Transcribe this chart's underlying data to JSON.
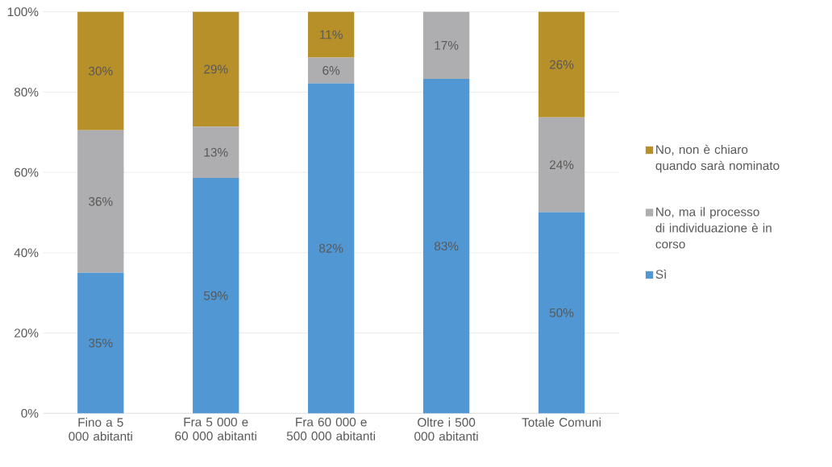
{
  "chart_data": {
    "type": "bar",
    "stacked": true,
    "categories": [
      "Fino a 5 000 abitanti",
      "Fra 5 000 e 60 000 abitanti",
      "Fra 60 000 e 500 000 abitanti",
      "Oltre i 500 000 abitanti",
      "Totale Comuni"
    ],
    "series": [
      {
        "name": "Sì",
        "color": "#5097d3",
        "values": [
          35,
          58.6,
          82.2,
          83.3,
          50.1
        ],
        "value_labels": [
          "35%",
          "59%",
          "82%",
          "83%",
          "50%"
        ]
      },
      {
        "name": "No, ma il processo di individuazione è in corso",
        "color": "#aeaeb0",
        "values": [
          35.5,
          12.8,
          6.4,
          16.7,
          23.6
        ],
        "value_labels": [
          "36%",
          "13%",
          "6%",
          "17%",
          "24%"
        ]
      },
      {
        "name": "No, non è chiaro quando sarà nominato",
        "color": "#b8902a",
        "values": [
          29.5,
          28.6,
          11.4,
          0,
          26.3
        ],
        "value_labels": [
          "30%",
          "29%",
          "11%",
          null,
          "26%"
        ]
      }
    ],
    "ylim": [
      0,
      100
    ],
    "yticks": [
      {
        "value": 0,
        "label": "0%"
      },
      {
        "value": 20,
        "label": "20%"
      },
      {
        "value": 40,
        "label": "40%"
      },
      {
        "value": 60,
        "label": "60%"
      },
      {
        "value": 80,
        "label": "80%"
      },
      {
        "value": 100,
        "label": "100%"
      }
    ],
    "grid": "y",
    "legend": "right"
  }
}
